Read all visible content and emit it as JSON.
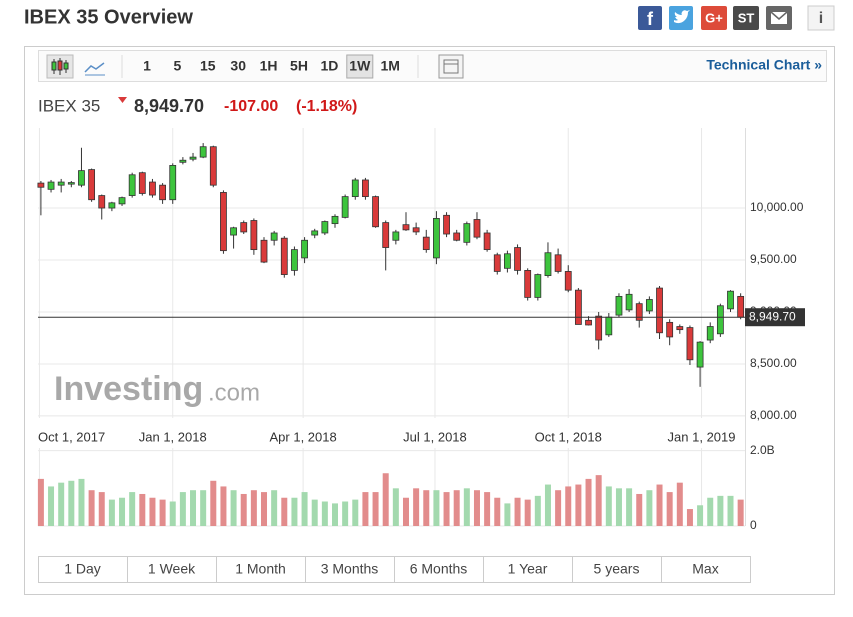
{
  "header": {
    "title": "IBEX 35 Overview",
    "share": {
      "facebook": "f",
      "google": "G+",
      "stocktwits": "ST"
    },
    "info": "i"
  },
  "toolbar": {
    "intervals": [
      "1",
      "5",
      "15",
      "30",
      "1H",
      "5H",
      "1D",
      "1W",
      "1M"
    ],
    "selected": "1W",
    "technical_chart": "Technical Chart »"
  },
  "quote": {
    "name": "IBEX 35",
    "price": "8,949.70",
    "change": "-107.00",
    "change_pct": "(-1.18%)"
  },
  "watermark": {
    "brand": "Investing",
    "suffix": ".com"
  },
  "ranges": [
    "1 Day",
    "1 Week",
    "1 Month",
    "3 Months",
    "6 Months",
    "1 Year",
    "5 years",
    "Max"
  ],
  "chart_data": {
    "type": "candlestick",
    "x": [
      "2017-10-02",
      "2017-10-09",
      "2017-10-16",
      "2017-10-23",
      "2017-10-30",
      "2017-11-06",
      "2017-11-13",
      "2017-11-20",
      "2017-11-27",
      "2017-12-04",
      "2017-12-11",
      "2017-12-18",
      "2017-12-25",
      "2018-01-01",
      "2018-01-08",
      "2018-01-15",
      "2018-01-22",
      "2018-01-29",
      "2018-02-05",
      "2018-02-12",
      "2018-02-19",
      "2018-02-26",
      "2018-03-05",
      "2018-03-12",
      "2018-03-19",
      "2018-03-26",
      "2018-04-02",
      "2018-04-09",
      "2018-04-16",
      "2018-04-23",
      "2018-04-30",
      "2018-05-07",
      "2018-05-14",
      "2018-05-21",
      "2018-05-28",
      "2018-06-04",
      "2018-06-11",
      "2018-06-18",
      "2018-06-25",
      "2018-07-02",
      "2018-07-09",
      "2018-07-16",
      "2018-07-23",
      "2018-07-30",
      "2018-08-06",
      "2018-08-13",
      "2018-08-20",
      "2018-08-27",
      "2018-09-03",
      "2018-09-10",
      "2018-09-17",
      "2018-09-24",
      "2018-10-01",
      "2018-10-08",
      "2018-10-15",
      "2018-10-22",
      "2018-10-29",
      "2018-11-05",
      "2018-11-12",
      "2018-11-19",
      "2018-11-26",
      "2018-12-03",
      "2018-12-10",
      "2018-12-17",
      "2018-12-24",
      "2018-12-31",
      "2019-01-07",
      "2019-01-14",
      "2019-01-21",
      "2019-01-28"
    ],
    "open": [
      10240,
      10180,
      10220,
      10230,
      10220,
      10370,
      10120,
      10000,
      10040,
      10120,
      10340,
      10250,
      10220,
      10080,
      10440,
      10470,
      10490,
      10590,
      10150,
      9740,
      9860,
      9880,
      9690,
      9690,
      9710,
      9400,
      9520,
      9740,
      9760,
      9850,
      9910,
      10110,
      10270,
      10110,
      9860,
      9690,
      9840,
      9810,
      9720,
      9520,
      9930,
      9760,
      9670,
      9890,
      9760,
      9550,
      9420,
      9620,
      9400,
      9140,
      9350,
      9550,
      9390,
      9210,
      8920,
      8960,
      8780,
      8970,
      9020,
      9080,
      9010,
      9230,
      8900,
      8860,
      8850,
      8470,
      8730,
      8790,
      9030,
      9150
    ],
    "high": [
      10260,
      10270,
      10280,
      10260,
      10580,
      10380,
      10130,
      10060,
      10110,
      10340,
      10350,
      10280,
      10240,
      10430,
      10490,
      10530,
      10625,
      10600,
      10170,
      9820,
      9880,
      9900,
      9720,
      9780,
      9730,
      9630,
      9720,
      9800,
      9880,
      9940,
      10130,
      10290,
      10290,
      10120,
      9880,
      9790,
      9960,
      9860,
      9790,
      9970,
      9960,
      9790,
      9870,
      9960,
      9790,
      9570,
      9590,
      9650,
      9420,
      9370,
      9670,
      9610,
      9450,
      9230,
      8960,
      9000,
      8990,
      9180,
      9220,
      9100,
      9150,
      9250,
      8930,
      8880,
      8870,
      8720,
      8900,
      9080,
      9210,
      9180
    ],
    "low": [
      9930,
      10150,
      10150,
      10200,
      10200,
      10060,
      9890,
      9970,
      10020,
      10100,
      10120,
      10100,
      10040,
      10040,
      10420,
      10450,
      10480,
      10200,
      9560,
      9610,
      9750,
      9550,
      9470,
      9640,
      9330,
      9350,
      9470,
      9710,
      9740,
      9810,
      9900,
      10080,
      10080,
      9810,
      9400,
      9650,
      9780,
      9740,
      9570,
      9460,
      9720,
      9680,
      9640,
      9700,
      9580,
      9360,
      9380,
      9360,
      9110,
      9110,
      9330,
      9370,
      9190,
      8880,
      8870,
      8640,
      8760,
      8950,
      9000,
      8850,
      8980,
      8740,
      8680,
      8790,
      8490,
      8280,
      8700,
      8760,
      9000,
      8930
    ],
    "close": [
      10200,
      10250,
      10250,
      10245,
      10360,
      10080,
      10000,
      10050,
      10100,
      10320,
      10140,
      10125,
      10080,
      10410,
      10460,
      10490,
      10590,
      10220,
      9590,
      9810,
      9770,
      9600,
      9480,
      9760,
      9360,
      9600,
      9690,
      9780,
      9870,
      9920,
      10110,
      10270,
      10110,
      9820,
      9620,
      9770,
      9790,
      9770,
      9600,
      9900,
      9750,
      9690,
      9850,
      9720,
      9600,
      9390,
      9560,
      9400,
      9140,
      9360,
      9570,
      9390,
      9210,
      8880,
      8875,
      8730,
      8950,
      9150,
      9170,
      8920,
      9120,
      8800,
      8760,
      8830,
      8540,
      8710,
      8860,
      9060,
      9200,
      8949.7
    ],
    "volume": [
      1.25,
      1.05,
      1.15,
      1.2,
      1.25,
      0.95,
      0.9,
      0.7,
      0.75,
      0.9,
      0.85,
      0.75,
      0.7,
      0.65,
      0.9,
      0.95,
      0.95,
      1.2,
      1.05,
      0.95,
      0.85,
      0.95,
      0.9,
      0.95,
      0.75,
      0.75,
      0.9,
      0.7,
      0.65,
      0.6,
      0.65,
      0.7,
      0.9,
      0.9,
      1.4,
      1.0,
      0.75,
      1.0,
      0.95,
      0.95,
      0.9,
      0.95,
      1.0,
      0.95,
      0.9,
      0.75,
      0.6,
      0.75,
      0.7,
      0.8,
      1.1,
      0.95,
      1.05,
      1.1,
      1.25,
      1.35,
      1.05,
      1.0,
      1.0,
      0.85,
      0.95,
      1.1,
      0.9,
      1.15,
      0.45,
      0.55,
      0.75,
      0.8,
      0.8,
      0.7
    ],
    "up_color": "#3dc43d",
    "down_color": "#d93a3a",
    "volume_up_color": "#a3d9ae",
    "volume_down_color": "#e28c8c",
    "xlim": [
      "2017-09-30",
      "2019-01-31"
    ],
    "xticks": [
      {
        "value": "2017-10-01",
        "label": "Oct 1, 2017"
      },
      {
        "value": "2018-01-01",
        "label": "Jan 1, 2018"
      },
      {
        "value": "2018-04-01",
        "label": "Apr 1, 2018"
      },
      {
        "value": "2018-07-01",
        "label": "Jul 1, 2018"
      },
      {
        "value": "2018-10-01",
        "label": "Oct 1, 2018"
      },
      {
        "value": "2019-01-01",
        "label": "Jan 1, 2019"
      }
    ],
    "ylim": [
      7980,
      10770
    ],
    "yticks": [
      {
        "value": 8000,
        "label": "8,000.00"
      },
      {
        "value": 8500,
        "label": "8,500.00"
      },
      {
        "value": 9000,
        "label": "9,000.00"
      },
      {
        "value": 9500,
        "label": "9,500.00"
      },
      {
        "value": 10000,
        "label": "10,000.00"
      }
    ],
    "volume_lim": [
      0,
      2.07
    ],
    "volume_ticks": [
      0,
      {
        "value": 2,
        "label": "2.0B"
      }
    ],
    "last_price": {
      "value": 8949.7,
      "label": "8,949.70"
    },
    "grid": true
  }
}
